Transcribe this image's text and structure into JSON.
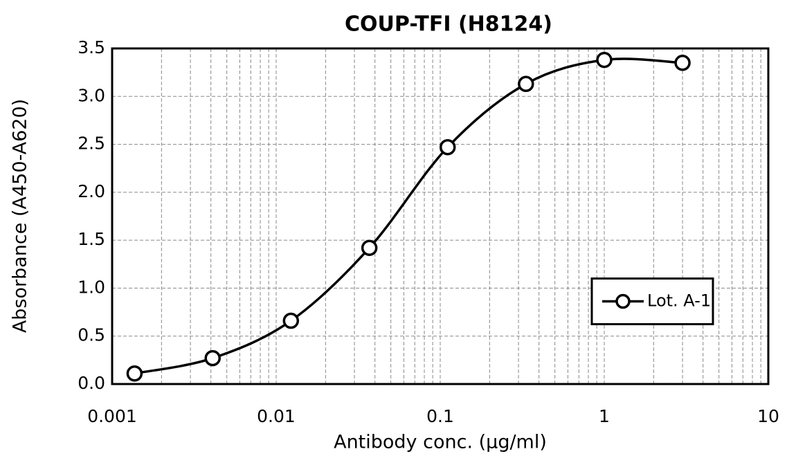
{
  "chart_data": {
    "type": "line",
    "title": "COUP-TFI (H8124)",
    "x_label": "Antibody conc. (µg/ml)",
    "y_label": "Absorbance (A450-A620)",
    "x": [
      0.00137,
      0.0041,
      0.0123,
      0.037,
      0.111,
      0.333,
      1,
      3
    ],
    "series": [
      {
        "name": "Lot. A-1",
        "color": "#000000",
        "values": [
          0.11,
          0.27,
          0.66,
          1.42,
          2.47,
          3.13,
          3.38,
          3.35
        ]
      }
    ],
    "xscale": "log",
    "xlim": [
      0.001,
      10
    ],
    "xticks": [
      0.001,
      0.01,
      0.1,
      1,
      10
    ],
    "xminorticks": [
      0.002,
      0.003,
      0.004,
      0.005,
      0.006,
      0.007,
      0.008,
      0.009,
      0.02,
      0.03,
      0.04,
      0.05,
      0.06,
      0.07,
      0.08,
      0.09,
      0.2,
      0.3,
      0.4,
      0.5,
      0.6,
      0.7,
      0.8,
      0.9,
      2,
      3,
      4,
      5,
      6,
      7,
      8,
      9
    ],
    "ylim": [
      0,
      3.5
    ],
    "yticks": [
      {
        "value": 0,
        "label": "0.0"
      },
      0.5,
      {
        "value": 1,
        "label": "1.0"
      },
      1.5,
      {
        "value": 2,
        "label": "2.0"
      },
      2.5,
      {
        "value": 3,
        "label": "3.0"
      },
      3.5
    ],
    "grid": true,
    "legend": "center-right"
  }
}
